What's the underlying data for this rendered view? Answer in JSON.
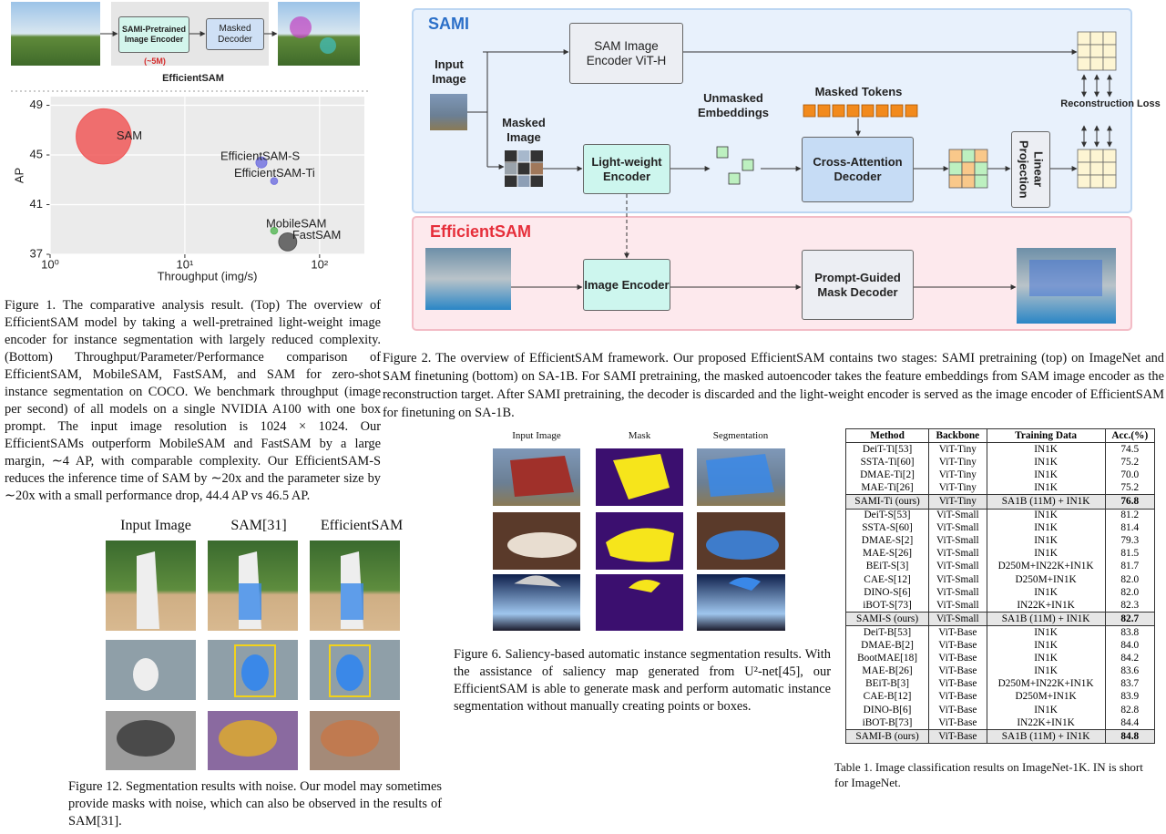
{
  "figure1": {
    "encoder": "SAMI-Pretrained Image Encoder",
    "params": "(~5M)",
    "decoder": "Masked Decoder",
    "label": "EfficientSAM",
    "caption": "Figure 1. The comparative analysis result. (Top) The overview of EfficientSAM model by taking a well-pretrained light-weight image encoder for instance segmentation with largely reduced complexity. (Bottom) Throughput/Parameter/Performance comparison of EfficientSAM, MobileSAM, FastSAM, and SAM for zero-shot instance segmentation on COCO. We benchmark throughput (image per second) of all models on a single NVIDIA A100 with one box prompt. The input image resolution is 1024 × 1024. Our EfficientSAMs outperform MobileSAM and FastSAM by a large margin, ∼4 AP, with comparable complexity. Our EfficientSAM-S reduces the inference time of SAM by ∼20x and the parameter size by ∼20x with a small performance drop, 44.4 AP vs 46.5 AP."
  },
  "chart_data": {
    "type": "scatter",
    "xlabel": "Throughput (img/s)",
    "ylabel": "AP",
    "labels": [
      "SAM",
      "EfficientSAM-S",
      "EfficientSAM-Ti",
      "MobileSAM",
      "FastSAM"
    ],
    "x": [
      2.5,
      37,
      46,
      46,
      58
    ],
    "values": [
      46.5,
      44.4,
      42.9,
      38.9,
      38.0
    ],
    "sizes": [
      636,
      25,
      10,
      10,
      68
    ],
    "colors": [
      "#f05858",
      "#7474e0",
      "#7474e0",
      "#5cb85c",
      "#555555"
    ],
    "xscale": "log",
    "xlim": [
      1,
      215
    ],
    "ylim": [
      37,
      49.7
    ],
    "xticks": [
      {
        "value": 1,
        "label": "10⁰"
      },
      {
        "value": 10,
        "label": "10¹"
      },
      {
        "value": 100,
        "label": "10²"
      }
    ],
    "yticks": [
      37,
      41,
      45,
      49
    ],
    "grid": true
  },
  "figure2": {
    "sami_title": "SAMI",
    "input_image": "Input Image",
    "sam_encoder": "SAM Image Encoder ViT-H",
    "masked_image": "Masked Image",
    "light_encoder": "Light-weight Encoder",
    "unmasked": "Unmasked Embeddings",
    "masked_tokens": "Masked Tokens",
    "cross_decoder": "Cross-Attention Decoder",
    "linear": "Linear Projection",
    "recon": "Reconstruction Loss",
    "efficientsam_title": "EfficientSAM",
    "image_encoder": "Image Encoder",
    "mask_decoder": "Prompt-Guided Mask Decoder",
    "caption": "Figure 2. The overview of EfficientSAM framework. Our proposed EfficientSAM contains two stages: SAMI pretraining (top) on ImageNet and SAM finetuning (bottom) on SA-1B. For SAMI pretraining, the masked autoencoder takes the feature embeddings from SAM image encoder as the reconstruction target. After SAMI pretraining, the decoder is discarded and the light-weight encoder is served as the image encoder of EfficientSAM for finetuning on SA-1B."
  },
  "figure12": {
    "headers": [
      "Input Image",
      "SAM[31]",
      "EfficientSAM"
    ],
    "caption": "Figure 12. Segmentation results with noise. Our model may sometimes provide masks with noise, which can also be observed in the results of SAM[31]."
  },
  "figure6": {
    "headers": [
      "Input Image",
      "Mask",
      "Segmentation"
    ],
    "caption": "Figure 6. Saliency-based automatic instance segmentation results. With the assistance of saliency map generated from U²-net[45], our EfficientSAM is able to generate mask and perform automatic instance segmentation without manually creating points or boxes."
  },
  "table1": {
    "columns": [
      "Method",
      "Backbone",
      "Training Data",
      "Acc.(%)"
    ],
    "rows": [
      [
        "DeiT-Ti[53]",
        "ViT-Tiny",
        "IN1K",
        "74.5"
      ],
      [
        "SSTA-Ti[60]",
        "ViT-Tiny",
        "IN1K",
        "75.2"
      ],
      [
        "DMAE-Ti[2]",
        "ViT-Tiny",
        "IN1K",
        "70.0"
      ],
      [
        "MAE-Ti[26]",
        "ViT-Tiny",
        "IN1K",
        "75.2"
      ],
      [
        "SAMI-Ti (ours)",
        "ViT-Tiny",
        "SA1B (11M) + IN1K",
        "76.8"
      ],
      [
        "DeiT-S[53]",
        "ViT-Small",
        "IN1K",
        "81.2"
      ],
      [
        "SSTA-S[60]",
        "ViT-Small",
        "IN1K",
        "81.4"
      ],
      [
        "DMAE-S[2]",
        "ViT-Small",
        "IN1K",
        "79.3"
      ],
      [
        "MAE-S[26]",
        "ViT-Small",
        "IN1K",
        "81.5"
      ],
      [
        "BEiT-S[3]",
        "ViT-Small",
        "D250M+IN22K+IN1K",
        "81.7"
      ],
      [
        "CAE-S[12]",
        "ViT-Small",
        "D250M+IN1K",
        "82.0"
      ],
      [
        "DINO-S[6]",
        "ViT-Small",
        "IN1K",
        "82.0"
      ],
      [
        "iBOT-S[73]",
        "ViT-Small",
        "IN22K+IN1K",
        "82.3"
      ],
      [
        "SAMI-S (ours)",
        "ViT-Small",
        "SA1B (11M) + IN1K",
        "82.7"
      ],
      [
        "DeiT-B[53]",
        "ViT-Base",
        "IN1K",
        "83.8"
      ],
      [
        "DMAE-B[2]",
        "ViT-Base",
        "IN1K",
        "84.0"
      ],
      [
        "BootMAE[18]",
        "ViT-Base",
        "IN1K",
        "84.2"
      ],
      [
        "MAE-B[26]",
        "ViT-Base",
        "IN1K",
        "83.6"
      ],
      [
        "BEiT-B[3]",
        "ViT-Base",
        "D250M+IN22K+IN1K",
        "83.7"
      ],
      [
        "CAE-B[12]",
        "ViT-Base",
        "D250M+IN1K",
        "83.9"
      ],
      [
        "DINO-B[6]",
        "ViT-Base",
        "IN1K",
        "82.8"
      ],
      [
        "iBOT-B[73]",
        "ViT-Base",
        "IN22K+IN1K",
        "84.4"
      ],
      [
        "SAMI-B (ours)",
        "ViT-Base",
        "SA1B (11M) + IN1K",
        "84.8"
      ]
    ],
    "highlight_rows": [
      4,
      13,
      22
    ],
    "caption": "Table 1. Image classification results on ImageNet-1K. IN is short for ImageNet."
  }
}
